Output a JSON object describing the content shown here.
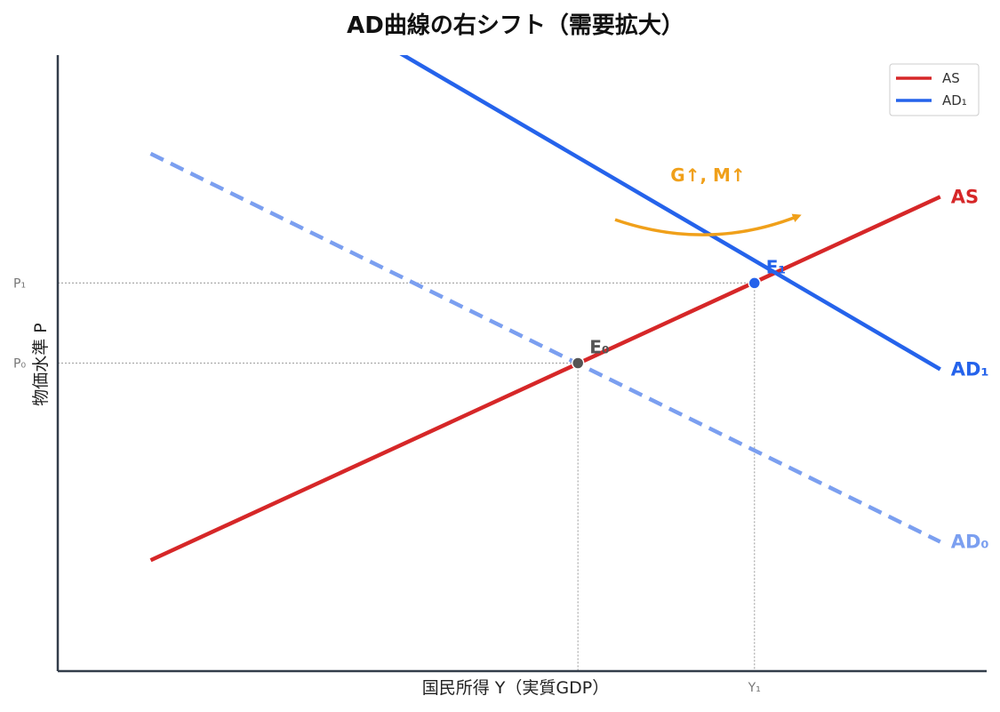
{
  "chart_data": {
    "type": "line",
    "title": "AD曲線の右シフト（需要拡大）",
    "xlabel": "国民所得 Y（実質GDP）",
    "ylabel": "物価水準 P",
    "xlim": [
      0,
      10
    ],
    "ylim": [
      0,
      10
    ],
    "grid": false,
    "legend": {
      "placement": "top-right",
      "entries": [
        {
          "label": "AS",
          "color": "#d62728"
        },
        {
          "label": "AD₁",
          "color": "#2563eb"
        }
      ]
    },
    "series": [
      {
        "name": "AS",
        "style": "solid",
        "color": "#d62728",
        "x": [
          1,
          9.5
        ],
        "y": [
          1.8,
          7.7
        ],
        "end_label": "AS"
      },
      {
        "name": "AD₀",
        "style": "dashed",
        "color": "#7b9ff0",
        "x": [
          1,
          9.5
        ],
        "y": [
          8.4,
          2.1
        ],
        "end_label": "AD₀"
      },
      {
        "name": "AD₁",
        "style": "solid",
        "color": "#2563eb",
        "x": [
          1,
          9.5
        ],
        "y": [
          12.4,
          4.9
        ],
        "end_label": "AD₁"
      }
    ],
    "points": [
      {
        "label": "E₀",
        "x": 5.6,
        "y": 5.0,
        "color": "#555555"
      },
      {
        "label": "E₁",
        "x": 7.5,
        "y": 6.3,
        "color": "#2563eb"
      }
    ],
    "y_ticks": [
      {
        "label": "P₀",
        "value": 5.0
      },
      {
        "label": "P₁",
        "value": 6.3
      }
    ],
    "x_ticks": [
      {
        "label": "Y₁",
        "value": 7.5
      }
    ],
    "annotation": {
      "text": "G↑, M↑",
      "color": "#f0a01a",
      "x_from": 6.0,
      "x_to": 8.0,
      "y_from": 7.3,
      "y_to": 7.3
    }
  }
}
